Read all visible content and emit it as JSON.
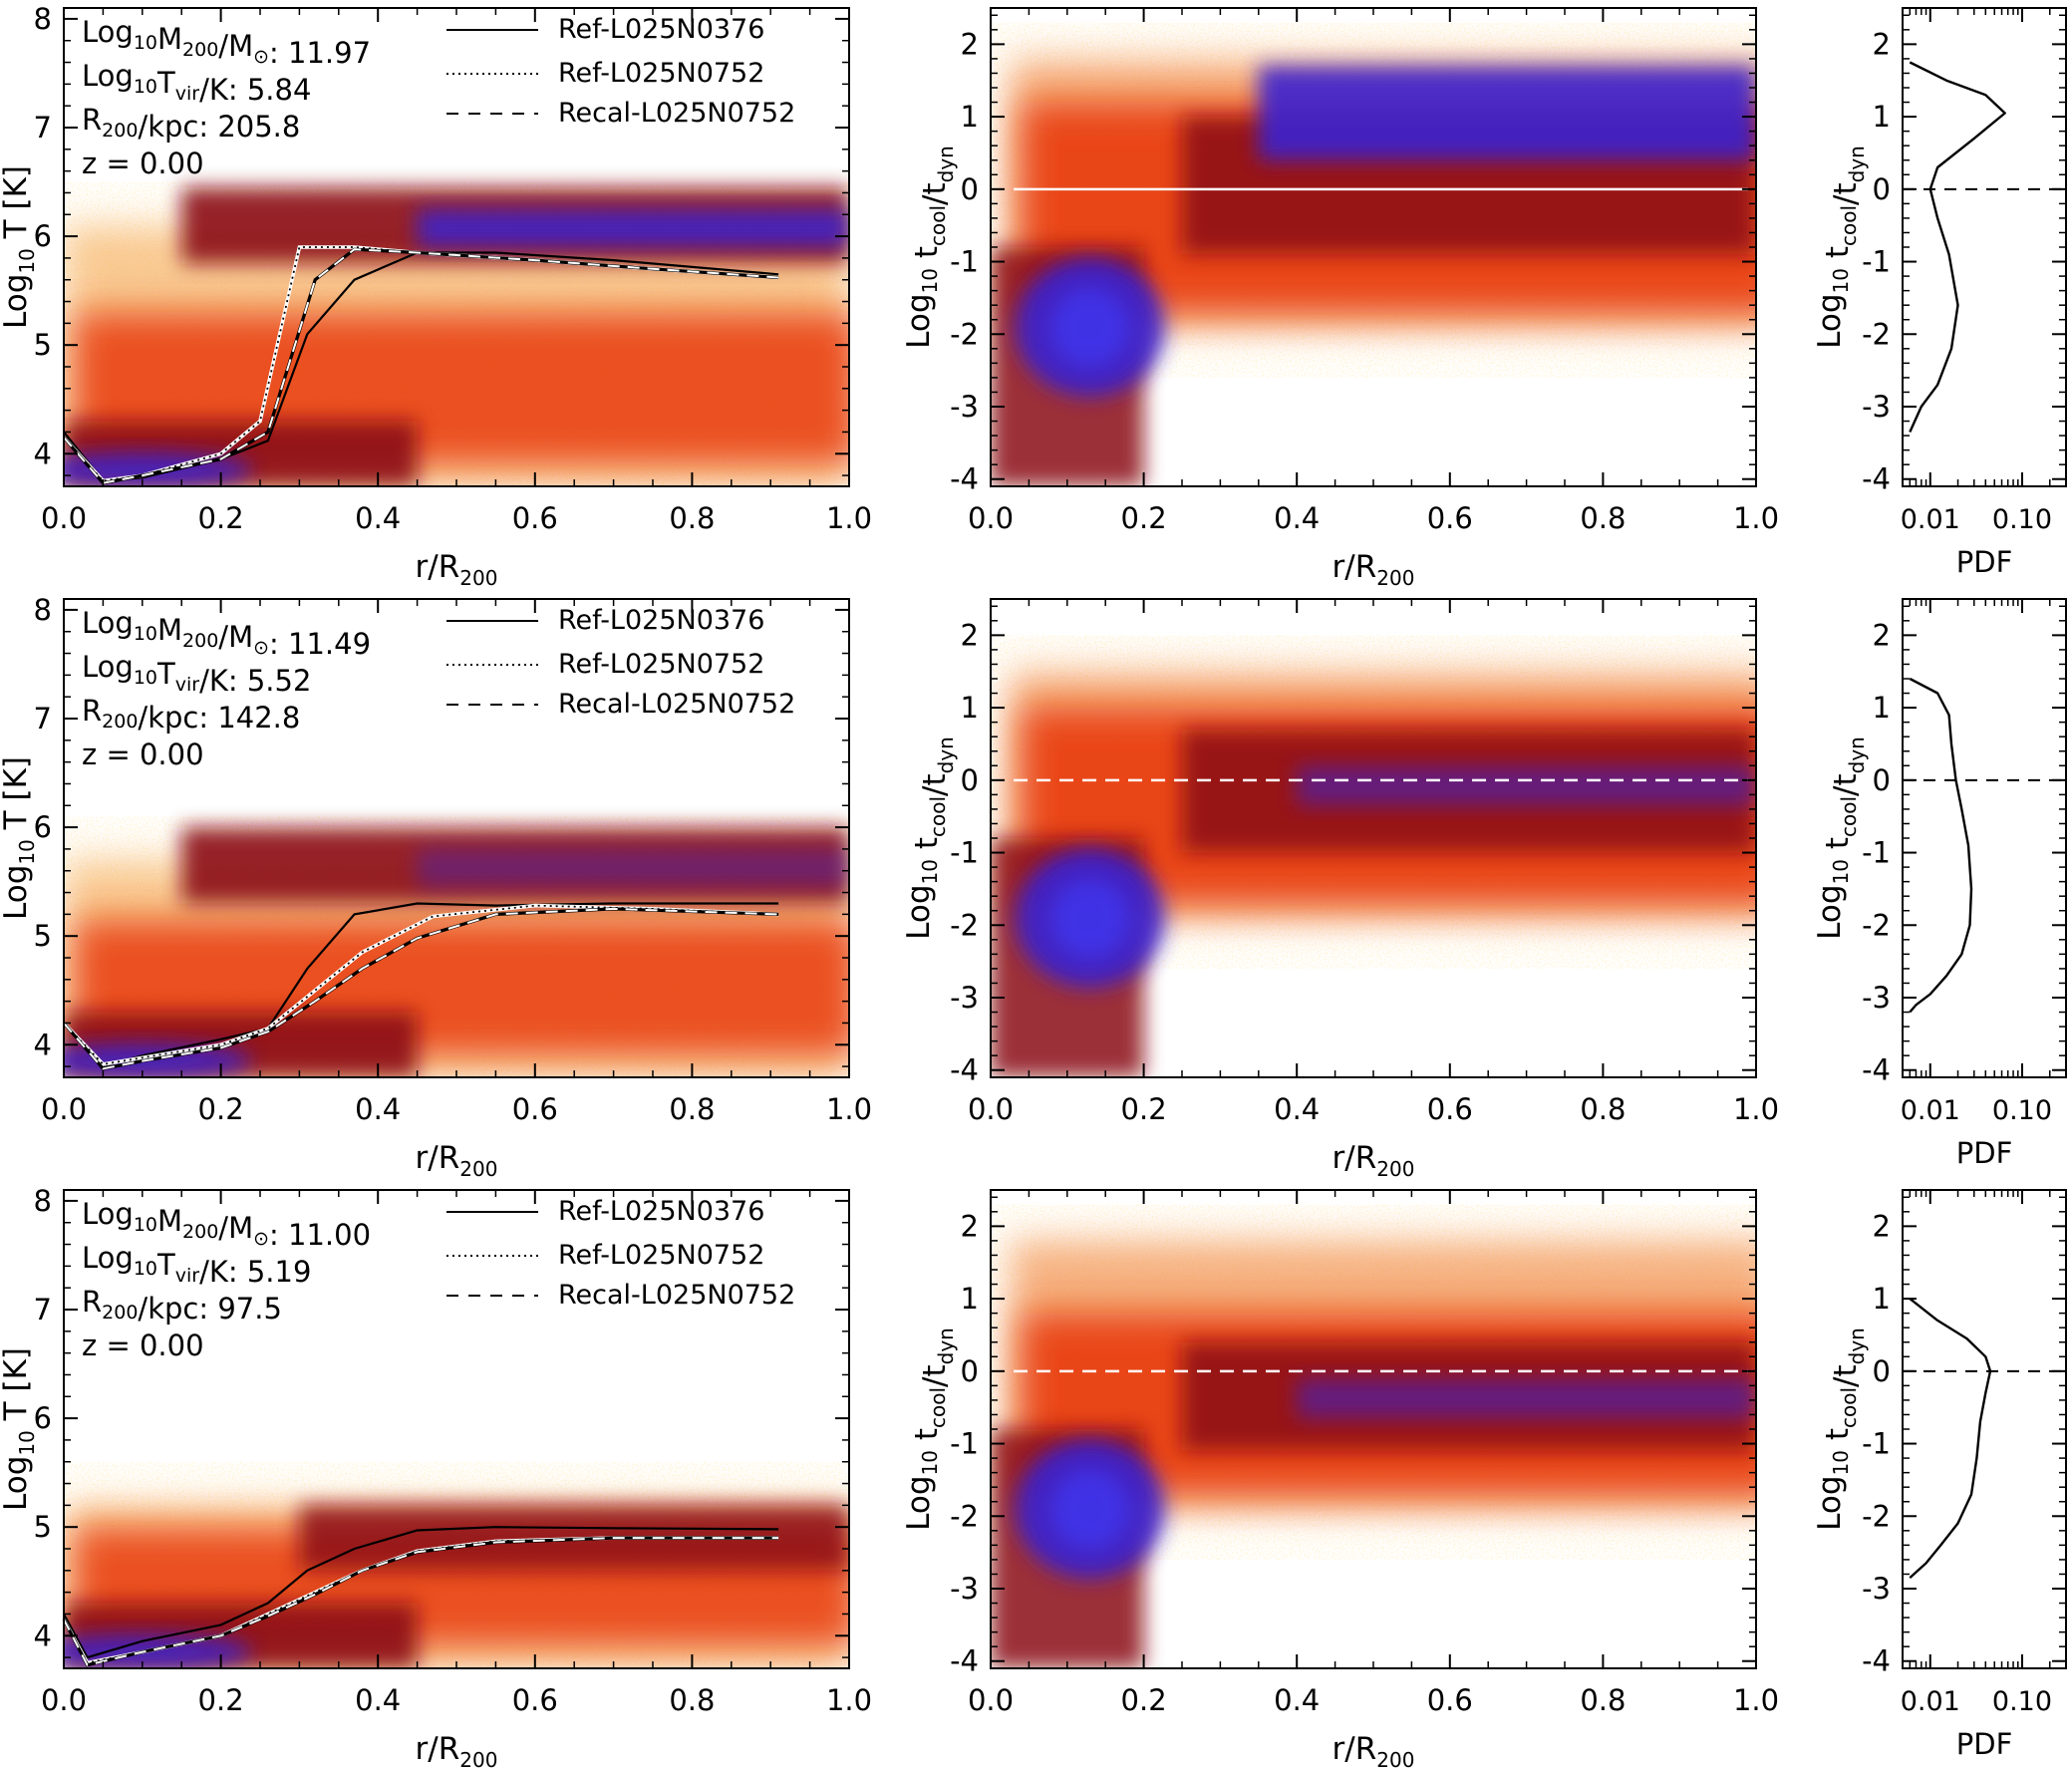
{
  "rows": [
    {
      "id": "row-1",
      "annotations": {
        "mass_label": "Log10M200/M⊙:",
        "mass_value": "11.97",
        "tvir_label": "Log10Tvir/K:",
        "tvir_value": "5.84",
        "r200_label": "R200/kpc:",
        "r200_value": "205.8",
        "z_label": "z = 0.00"
      }
    },
    {
      "id": "row-2",
      "annotations": {
        "mass_label": "Log10M200/M⊙:",
        "mass_value": "11.49",
        "tvir_label": "Log10Tvir/K:",
        "tvir_value": "5.52",
        "r200_label": "R200/kpc:",
        "r200_value": "142.8",
        "z_label": "z = 0.00"
      }
    },
    {
      "id": "row-3",
      "annotations": {
        "mass_label": "Log10M200/M⊙:",
        "mass_value": "11.00",
        "tvir_label": "Log10Tvir/K:",
        "tvir_value": "5.19",
        "r200_label": "R200/kpc:",
        "r200_value": "97.5",
        "z_label": "z = 0.00"
      }
    }
  ],
  "legend": {
    "solid": "Ref-L025N0376",
    "dotted": "Ref-L025N0752",
    "dashed": "Recal-L025N0752"
  },
  "axes": {
    "temp_ylabel": "Log10 T [K]",
    "tcool_ylabel": "Log10 tcool/tdyn",
    "r_xlabel": "r/R200",
    "pdf_xlabel": "PDF"
  },
  "colors": {
    "density_low": "#f0c060",
    "density_mid": "#e83a10",
    "density_high": "#8b0a14",
    "density_peak": "#3a20d0"
  },
  "chart_data": [
    {
      "type": "heatmap",
      "panel": "row1-temperature",
      "xlabel": "r/R200",
      "ylabel": "Log10 T [K]",
      "xlim": [
        0.0,
        1.0
      ],
      "ylim": [
        3.7,
        8.1
      ],
      "xticks": [
        0.0,
        0.2,
        0.4,
        0.6,
        0.8,
        1.0
      ],
      "yticks": [
        4,
        5,
        6,
        7,
        8
      ],
      "series": [
        {
          "name": "Ref-L025N0376",
          "style": "solid",
          "x": [
            0.0,
            0.05,
            0.1,
            0.2,
            0.26,
            0.31,
            0.37,
            0.45,
            0.55,
            0.7,
            0.91
          ],
          "y": [
            4.2,
            3.75,
            3.78,
            3.95,
            4.12,
            5.1,
            5.6,
            5.85,
            5.85,
            5.78,
            5.65
          ]
        },
        {
          "name": "Ref-L025N0752",
          "style": "dotted",
          "x": [
            0.0,
            0.05,
            0.1,
            0.2,
            0.25,
            0.3,
            0.37,
            0.45,
            0.6,
            0.75,
            0.91
          ],
          "y": [
            4.15,
            3.75,
            3.8,
            4.0,
            4.3,
            5.9,
            5.9,
            5.85,
            5.78,
            5.7,
            5.62
          ]
        },
        {
          "name": "Recal-L025N0752",
          "style": "dashed",
          "x": [
            0.0,
            0.05,
            0.1,
            0.2,
            0.26,
            0.32,
            0.37,
            0.45,
            0.6,
            0.75,
            0.91
          ],
          "y": [
            4.15,
            3.73,
            3.8,
            3.95,
            4.2,
            5.6,
            5.88,
            5.85,
            5.78,
            5.7,
            5.62
          ]
        }
      ]
    },
    {
      "type": "heatmap",
      "panel": "row1-tcool",
      "xlabel": "r/R200",
      "ylabel": "Log10 tcool/tdyn",
      "xlim": [
        0.0,
        1.0
      ],
      "ylim": [
        -4.1,
        2.5
      ],
      "xticks": [
        0.0,
        0.2,
        0.4,
        0.6,
        0.8,
        1.0
      ],
      "yticks": [
        -4,
        -3,
        -2,
        -1,
        0,
        1,
        2
      ],
      "reference_line": 0,
      "reference_style": "solid-white"
    },
    {
      "type": "line",
      "panel": "row1-pdf",
      "xlabel": "PDF",
      "ylabel": "Log10 tcool/tdyn",
      "log_x": true,
      "xlim": [
        0.005,
        0.3
      ],
      "ylim": [
        -4.1,
        2.5
      ],
      "xticks": [
        0.01,
        0.1
      ],
      "xticklabels": [
        "0.01",
        "0.10"
      ],
      "yticks": [
        -4,
        -3,
        -2,
        -1,
        0,
        1,
        2
      ],
      "pdf": [
        0.006,
        0.015,
        0.04,
        0.065,
        0.03,
        0.012,
        0.01,
        0.012,
        0.016,
        0.02,
        0.017,
        0.012,
        0.008,
        0.006
      ],
      "y": [
        1.75,
        1.5,
        1.3,
        1.05,
        0.7,
        0.3,
        0.0,
        -0.4,
        -0.9,
        -1.6,
        -2.2,
        -2.7,
        -3.0,
        -3.35
      ]
    },
    {
      "type": "heatmap",
      "panel": "row2-temperature",
      "xlabel": "r/R200",
      "ylabel": "Log10 T [K]",
      "xlim": [
        0.0,
        1.0
      ],
      "ylim": [
        3.7,
        8.1
      ],
      "xticks": [
        0.0,
        0.2,
        0.4,
        0.6,
        0.8,
        1.0
      ],
      "yticks": [
        4,
        5,
        6,
        7,
        8
      ],
      "series": [
        {
          "name": "Ref-L025N0376",
          "style": "solid",
          "x": [
            0.0,
            0.05,
            0.1,
            0.2,
            0.26,
            0.31,
            0.37,
            0.45,
            0.55,
            0.7,
            0.91
          ],
          "y": [
            4.2,
            3.8,
            3.9,
            4.05,
            4.15,
            4.7,
            5.2,
            5.3,
            5.28,
            5.3,
            5.3
          ]
        },
        {
          "name": "Ref-L025N0752",
          "style": "dotted",
          "x": [
            0.0,
            0.05,
            0.1,
            0.2,
            0.26,
            0.32,
            0.38,
            0.47,
            0.6,
            0.75,
            0.91
          ],
          "y": [
            4.2,
            3.82,
            3.88,
            4.0,
            4.15,
            4.5,
            4.85,
            5.18,
            5.28,
            5.25,
            5.2
          ]
        },
        {
          "name": "Recal-L025N0752",
          "style": "dashed",
          "x": [
            0.0,
            0.05,
            0.1,
            0.2,
            0.26,
            0.32,
            0.38,
            0.45,
            0.55,
            0.7,
            0.91
          ],
          "y": [
            4.2,
            3.78,
            3.85,
            3.97,
            4.12,
            4.4,
            4.7,
            4.98,
            5.2,
            5.25,
            5.2
          ]
        }
      ]
    },
    {
      "type": "heatmap",
      "panel": "row2-tcool",
      "xlabel": "r/R200",
      "ylabel": "Log10 tcool/tdyn",
      "xlim": [
        0.0,
        1.0
      ],
      "ylim": [
        -4.1,
        2.5
      ],
      "xticks": [
        0.0,
        0.2,
        0.4,
        0.6,
        0.8,
        1.0
      ],
      "yticks": [
        -4,
        -3,
        -2,
        -1,
        0,
        1,
        2
      ],
      "reference_line": 0,
      "reference_style": "dashed-white"
    },
    {
      "type": "line",
      "panel": "row2-pdf",
      "xlabel": "PDF",
      "ylabel": "Log10 tcool/tdyn",
      "log_x": true,
      "xlim": [
        0.005,
        0.3
      ],
      "ylim": [
        -4.1,
        2.5
      ],
      "xticks": [
        0.01,
        0.1
      ],
      "xticklabels": [
        "0.01",
        "0.10"
      ],
      "yticks": [
        -4,
        -3,
        -2,
        -1,
        0,
        1,
        2
      ],
      "pdf": [
        0.006,
        0.012,
        0.016,
        0.017,
        0.019,
        0.022,
        0.026,
        0.028,
        0.027,
        0.022,
        0.015,
        0.01,
        0.007,
        0.006
      ],
      "y": [
        1.4,
        1.2,
        0.9,
        0.5,
        0.0,
        -0.4,
        -0.9,
        -1.5,
        -2.0,
        -2.4,
        -2.7,
        -2.95,
        -3.1,
        -3.2
      ]
    },
    {
      "type": "heatmap",
      "panel": "row3-temperature",
      "xlabel": "r/R200",
      "ylabel": "Log10 T [K]",
      "xlim": [
        0.0,
        1.0
      ],
      "ylim": [
        3.7,
        8.1
      ],
      "xticks": [
        0.0,
        0.2,
        0.4,
        0.6,
        0.8,
        1.0
      ],
      "yticks": [
        4,
        5,
        6,
        7,
        8
      ],
      "series": [
        {
          "name": "Ref-L025N0376",
          "style": "solid",
          "x": [
            0.0,
            0.03,
            0.1,
            0.2,
            0.26,
            0.31,
            0.37,
            0.45,
            0.55,
            0.7,
            0.91
          ],
          "y": [
            4.2,
            3.8,
            3.95,
            4.1,
            4.3,
            4.6,
            4.8,
            4.97,
            5.0,
            4.99,
            4.98
          ]
        },
        {
          "name": "Ref-L025N0752",
          "style": "dotted",
          "x": [
            0.0,
            0.03,
            0.1,
            0.2,
            0.26,
            0.32,
            0.38,
            0.45,
            0.55,
            0.7,
            0.91
          ],
          "y": [
            4.15,
            3.75,
            3.85,
            4.0,
            4.2,
            4.4,
            4.6,
            4.78,
            4.87,
            4.9,
            4.9
          ]
        },
        {
          "name": "Recal-L025N0752",
          "style": "dashed",
          "x": [
            0.0,
            0.03,
            0.1,
            0.2,
            0.26,
            0.32,
            0.38,
            0.45,
            0.55,
            0.7,
            0.91
          ],
          "y": [
            4.15,
            3.73,
            3.85,
            4.0,
            4.18,
            4.38,
            4.6,
            4.77,
            4.86,
            4.9,
            4.9
          ]
        }
      ]
    },
    {
      "type": "heatmap",
      "panel": "row3-tcool",
      "xlabel": "r/R200",
      "ylabel": "Log10 tcool/tdyn",
      "xlim": [
        0.0,
        1.0
      ],
      "ylim": [
        -4.1,
        2.5
      ],
      "xticks": [
        0.0,
        0.2,
        0.4,
        0.6,
        0.8,
        1.0
      ],
      "yticks": [
        -4,
        -3,
        -2,
        -1,
        0,
        1,
        2
      ],
      "reference_line": 0,
      "reference_style": "dashed-white"
    },
    {
      "type": "line",
      "panel": "row3-pdf",
      "xlabel": "PDF",
      "ylabel": "Log10 tcool/tdyn",
      "log_x": true,
      "xlim": [
        0.005,
        0.3
      ],
      "ylim": [
        -4.1,
        2.5
      ],
      "xticks": [
        0.01,
        0.1
      ],
      "xticklabels": [
        "0.01",
        "0.10"
      ],
      "yticks": [
        -4,
        -3,
        -2,
        -1,
        0,
        1,
        2
      ],
      "pdf": [
        0.006,
        0.012,
        0.025,
        0.04,
        0.045,
        0.04,
        0.035,
        0.032,
        0.028,
        0.02,
        0.013,
        0.009,
        0.006
      ],
      "y": [
        1.0,
        0.7,
        0.45,
        0.2,
        0.0,
        -0.3,
        -0.7,
        -1.2,
        -1.7,
        -2.1,
        -2.4,
        -2.65,
        -2.85
      ]
    }
  ]
}
